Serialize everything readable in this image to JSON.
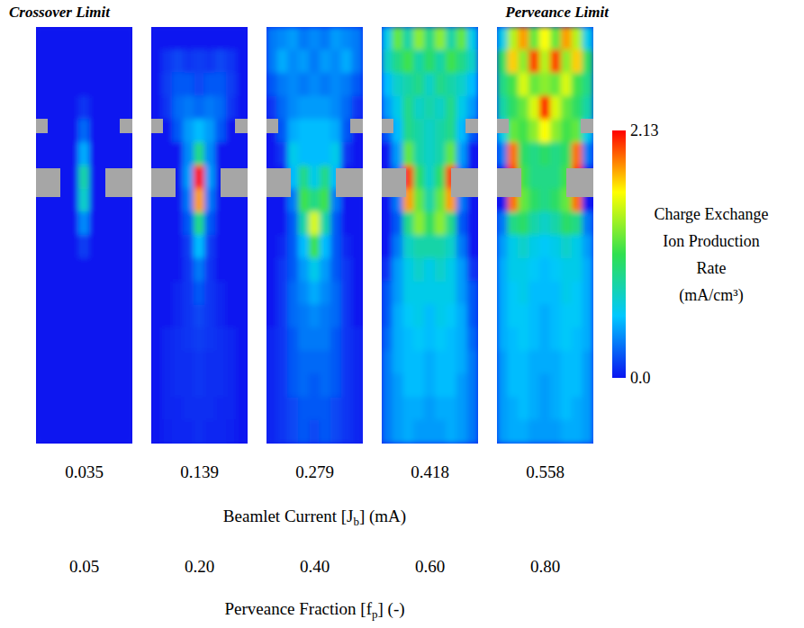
{
  "chart_data": {
    "type": "heatmap",
    "annotations": [
      "Crossover Limit",
      "Perveance Limit"
    ],
    "beamlet_currents": [
      0.035,
      0.139,
      0.279,
      0.418,
      0.558
    ],
    "beamlet_current_label": [
      "Beamlet Current [J",
      "b",
      "] (mA)"
    ],
    "perveance_fractions": [
      0.05,
      {
        "value": 0.2,
        "label": "0.20"
      },
      {
        "value": 0.4,
        "label": "0.40"
      },
      {
        "value": 0.6,
        "label": "0.60"
      },
      {
        "value": 0.8,
        "label": "0.80"
      }
    ],
    "perveance_fraction_label": [
      "Perveance Fraction [f",
      "p",
      "] (-)"
    ],
    "colorbar": {
      "label": "Charge Exchange Ion Production Rate (mA/cm³)",
      "range": [
        0,
        2.13
      ],
      "ticks": [
        2.13,
        {
          "value": 0,
          "label": "0.0"
        }
      ]
    },
    "panels": [
      {
        "cells": [
          [
            0,
            0,
            0,
            0,
            0,
            0,
            0,
            0,
            0
          ],
          [
            0,
            0,
            0,
            0,
            0,
            0,
            0,
            0,
            0
          ],
          [
            0,
            0,
            0,
            0,
            0,
            0,
            0,
            0,
            0
          ],
          [
            0,
            0,
            0,
            0,
            0.1,
            0,
            0,
            0,
            0
          ],
          [
            0,
            0,
            0,
            0,
            0.25,
            0,
            0,
            0,
            0
          ],
          [
            0,
            0,
            0,
            0,
            0.45,
            0,
            0,
            0,
            0
          ],
          [
            0,
            0,
            0,
            0,
            0.8,
            0,
            0,
            0,
            0
          ],
          [
            0,
            0,
            0,
            0,
            0.7,
            0,
            0,
            0,
            0
          ],
          [
            0,
            0,
            0,
            0,
            0.35,
            0,
            0,
            0,
            0
          ],
          [
            0,
            0,
            0,
            0,
            0.12,
            0,
            0,
            0,
            0
          ],
          [
            0,
            0,
            0,
            0,
            0,
            0,
            0,
            0,
            0
          ],
          [
            0,
            0,
            0,
            0,
            0,
            0,
            0,
            0,
            0
          ],
          [
            0,
            0,
            0,
            0,
            0,
            0,
            0,
            0,
            0
          ],
          [
            0,
            0,
            0,
            0,
            0,
            0,
            0,
            0,
            0
          ],
          [
            0,
            0,
            0,
            0,
            0,
            0,
            0,
            0,
            0
          ],
          [
            0,
            0,
            0,
            0,
            0,
            0,
            0,
            0,
            0
          ],
          [
            0,
            0,
            0,
            0,
            0,
            0,
            0,
            0,
            0
          ],
          [
            0,
            0,
            0,
            0,
            0,
            0,
            0,
            0,
            0
          ]
        ]
      },
      {
        "cells": [
          [
            0,
            0,
            0,
            0,
            0,
            0,
            0,
            0,
            0
          ],
          [
            0,
            0.1,
            0.15,
            0.1,
            0.12,
            0.1,
            0.15,
            0.1,
            0
          ],
          [
            0,
            0.12,
            0.2,
            0.2,
            0.15,
            0.2,
            0.2,
            0.12,
            0
          ],
          [
            0,
            0.1,
            0.25,
            0.3,
            0.25,
            0.3,
            0.25,
            0.1,
            0
          ],
          [
            0,
            0,
            0.2,
            0.4,
            0.5,
            0.4,
            0.2,
            0,
            0
          ],
          [
            0,
            0,
            0,
            0.35,
            0.9,
            0.35,
            0,
            0,
            0
          ],
          [
            0,
            0,
            0,
            0.4,
            2.1,
            0.4,
            0,
            0,
            0
          ],
          [
            0,
            0,
            0,
            0.3,
            1.8,
            0.3,
            0,
            0,
            0
          ],
          [
            0,
            0,
            0,
            0.2,
            0.9,
            0.2,
            0,
            0,
            0
          ],
          [
            0,
            0,
            0,
            0.12,
            0.5,
            0.12,
            0,
            0,
            0
          ],
          [
            0,
            0,
            0,
            0.1,
            0.3,
            0.1,
            0,
            0,
            0
          ],
          [
            0,
            0,
            0.05,
            0.1,
            0.2,
            0.1,
            0.05,
            0,
            0
          ],
          [
            0,
            0,
            0.05,
            0.1,
            0.15,
            0.1,
            0.05,
            0,
            0
          ],
          [
            0,
            0.05,
            0.08,
            0.1,
            0.12,
            0.1,
            0.08,
            0.05,
            0
          ],
          [
            0,
            0.05,
            0.08,
            0.08,
            0.1,
            0.08,
            0.08,
            0.05,
            0
          ],
          [
            0,
            0.05,
            0.08,
            0.08,
            0.1,
            0.08,
            0.08,
            0.05,
            0
          ],
          [
            0,
            0.05,
            0.06,
            0.08,
            0.08,
            0.08,
            0.06,
            0.05,
            0
          ],
          [
            0,
            0.04,
            0.06,
            0.06,
            0.08,
            0.06,
            0.06,
            0.04,
            0
          ]
        ]
      },
      {
        "cells": [
          [
            0.3,
            0.35,
            0.4,
            0.3,
            0.35,
            0.3,
            0.4,
            0.35,
            0.3
          ],
          [
            0.3,
            0.45,
            0.35,
            0.4,
            0.3,
            0.4,
            0.35,
            0.45,
            0.3
          ],
          [
            0.2,
            0.3,
            0.35,
            0.3,
            0.35,
            0.3,
            0.35,
            0.3,
            0.2
          ],
          [
            0.1,
            0.25,
            0.35,
            0.4,
            0.4,
            0.4,
            0.35,
            0.25,
            0.1
          ],
          [
            0,
            0.2,
            0.45,
            0.5,
            0.5,
            0.5,
            0.45,
            0.2,
            0
          ],
          [
            0,
            0.1,
            0.6,
            0.5,
            0.5,
            0.5,
            0.6,
            0.1,
            0
          ],
          [
            0,
            0,
            0.5,
            0.9,
            0.6,
            0.9,
            0.5,
            0,
            0
          ],
          [
            0,
            0,
            0.3,
            1.1,
            0.9,
            1.1,
            0.3,
            0,
            0
          ],
          [
            0,
            0,
            0.2,
            0.8,
            1.5,
            0.8,
            0.2,
            0,
            0
          ],
          [
            0,
            0.05,
            0.2,
            0.5,
            1.1,
            0.5,
            0.2,
            0.05,
            0
          ],
          [
            0,
            0.1,
            0.2,
            0.4,
            0.6,
            0.4,
            0.2,
            0.1,
            0
          ],
          [
            0,
            0.1,
            0.25,
            0.35,
            0.45,
            0.35,
            0.25,
            0.1,
            0
          ],
          [
            0,
            0.1,
            0.25,
            0.3,
            0.35,
            0.3,
            0.25,
            0.1,
            0
          ],
          [
            0.05,
            0.1,
            0.2,
            0.3,
            0.3,
            0.3,
            0.2,
            0.1,
            0.05
          ],
          [
            0.05,
            0.1,
            0.2,
            0.25,
            0.25,
            0.25,
            0.2,
            0.1,
            0.05
          ],
          [
            0.05,
            0.1,
            0.2,
            0.25,
            0.2,
            0.25,
            0.2,
            0.1,
            0.05
          ],
          [
            0.05,
            0.1,
            0.15,
            0.2,
            0.2,
            0.2,
            0.15,
            0.1,
            0.05
          ],
          [
            0.05,
            0.1,
            0.15,
            0.2,
            0.15,
            0.2,
            0.15,
            0.1,
            0.05
          ]
        ]
      },
      {
        "cells": [
          [
            0.6,
            1.2,
            0.8,
            1.3,
            0.9,
            1.3,
            0.8,
            1.2,
            0.6
          ],
          [
            0.7,
            0.9,
            1.1,
            0.8,
            1.0,
            0.8,
            1.1,
            0.9,
            0.7
          ],
          [
            0.5,
            0.7,
            0.8,
            0.9,
            0.7,
            0.9,
            0.8,
            0.7,
            0.5
          ],
          [
            0.4,
            0.6,
            0.9,
            0.7,
            0.8,
            0.7,
            0.9,
            0.6,
            0.4
          ],
          [
            0.2,
            0.5,
            0.9,
            0.8,
            0.7,
            0.8,
            0.9,
            0.5,
            0.2
          ],
          [
            0,
            0.4,
            1.2,
            0.8,
            0.7,
            0.8,
            1.2,
            0.4,
            0
          ],
          [
            0,
            0.3,
            2.0,
            1.0,
            0.7,
            1.0,
            2.0,
            0.3,
            0
          ],
          [
            0,
            0.3,
            1.8,
            1.2,
            0.8,
            1.2,
            1.8,
            0.3,
            0
          ],
          [
            0,
            0.2,
            0.9,
            1.3,
            1.0,
            1.3,
            0.9,
            0.2,
            0
          ],
          [
            0,
            0.3,
            0.7,
            0.8,
            0.8,
            0.8,
            0.7,
            0.3,
            0
          ],
          [
            0.1,
            0.4,
            0.6,
            0.7,
            0.6,
            0.7,
            0.6,
            0.4,
            0.1
          ],
          [
            0.2,
            0.4,
            0.6,
            0.6,
            0.6,
            0.6,
            0.6,
            0.4,
            0.2
          ],
          [
            0.2,
            0.45,
            0.55,
            0.6,
            0.5,
            0.6,
            0.55,
            0.45,
            0.2
          ],
          [
            0.25,
            0.45,
            0.5,
            0.55,
            0.5,
            0.55,
            0.5,
            0.45,
            0.25
          ],
          [
            0.3,
            0.45,
            0.5,
            0.5,
            0.45,
            0.5,
            0.5,
            0.45,
            0.3
          ],
          [
            0.3,
            0.4,
            0.5,
            0.5,
            0.45,
            0.5,
            0.5,
            0.4,
            0.3
          ],
          [
            0.3,
            0.4,
            0.45,
            0.45,
            0.4,
            0.45,
            0.45,
            0.4,
            0.3
          ],
          [
            0.3,
            0.4,
            0.45,
            0.4,
            0.4,
            0.4,
            0.45,
            0.4,
            0.3
          ]
        ]
      },
      {
        "cells": [
          [
            0.6,
            1.4,
            1.8,
            1.2,
            1.6,
            1.2,
            1.8,
            1.4,
            0.6
          ],
          [
            1.0,
            1.7,
            1.3,
            2.0,
            1.4,
            2.0,
            1.3,
            1.7,
            1.0
          ],
          [
            0.9,
            1.1,
            1.5,
            1.2,
            1.3,
            1.2,
            1.5,
            1.1,
            0.9
          ],
          [
            0.8,
            1.0,
            1.2,
            1.5,
            2.1,
            1.5,
            1.2,
            1.0,
            0.8
          ],
          [
            0.6,
            1.2,
            1.1,
            1.3,
            1.6,
            1.3,
            1.1,
            1.2,
            0.6
          ],
          [
            0.3,
            1.9,
            1.0,
            0.9,
            1.0,
            0.9,
            1.0,
            1.9,
            0.3
          ],
          [
            0,
            2.0,
            1.1,
            0.9,
            0.9,
            0.9,
            1.1,
            2.0,
            0
          ],
          [
            0,
            1.9,
            1.2,
            1.0,
            0.9,
            1.0,
            1.2,
            1.9,
            0
          ],
          [
            0.3,
            0.9,
            1.0,
            0.8,
            0.7,
            0.8,
            1.0,
            0.9,
            0.3
          ],
          [
            0.4,
            0.6,
            0.7,
            0.6,
            0.55,
            0.6,
            0.7,
            0.6,
            0.4
          ],
          [
            0.45,
            0.6,
            0.6,
            0.55,
            0.5,
            0.55,
            0.6,
            0.6,
            0.45
          ],
          [
            0.45,
            0.55,
            0.6,
            0.5,
            0.5,
            0.5,
            0.6,
            0.55,
            0.45
          ],
          [
            0.45,
            0.55,
            0.55,
            0.5,
            0.45,
            0.5,
            0.55,
            0.55,
            0.45
          ],
          [
            0.45,
            0.5,
            0.55,
            0.5,
            0.45,
            0.5,
            0.55,
            0.5,
            0.45
          ],
          [
            0.4,
            0.5,
            0.5,
            0.45,
            0.45,
            0.45,
            0.5,
            0.5,
            0.4
          ],
          [
            0.4,
            0.5,
            0.5,
            0.45,
            0.4,
            0.45,
            0.5,
            0.5,
            0.4
          ],
          [
            0.4,
            0.45,
            0.5,
            0.45,
            0.4,
            0.45,
            0.5,
            0.45,
            0.4
          ],
          [
            0.4,
            0.45,
            0.45,
            0.4,
            0.4,
            0.4,
            0.45,
            0.45,
            0.4
          ]
        ]
      }
    ]
  }
}
